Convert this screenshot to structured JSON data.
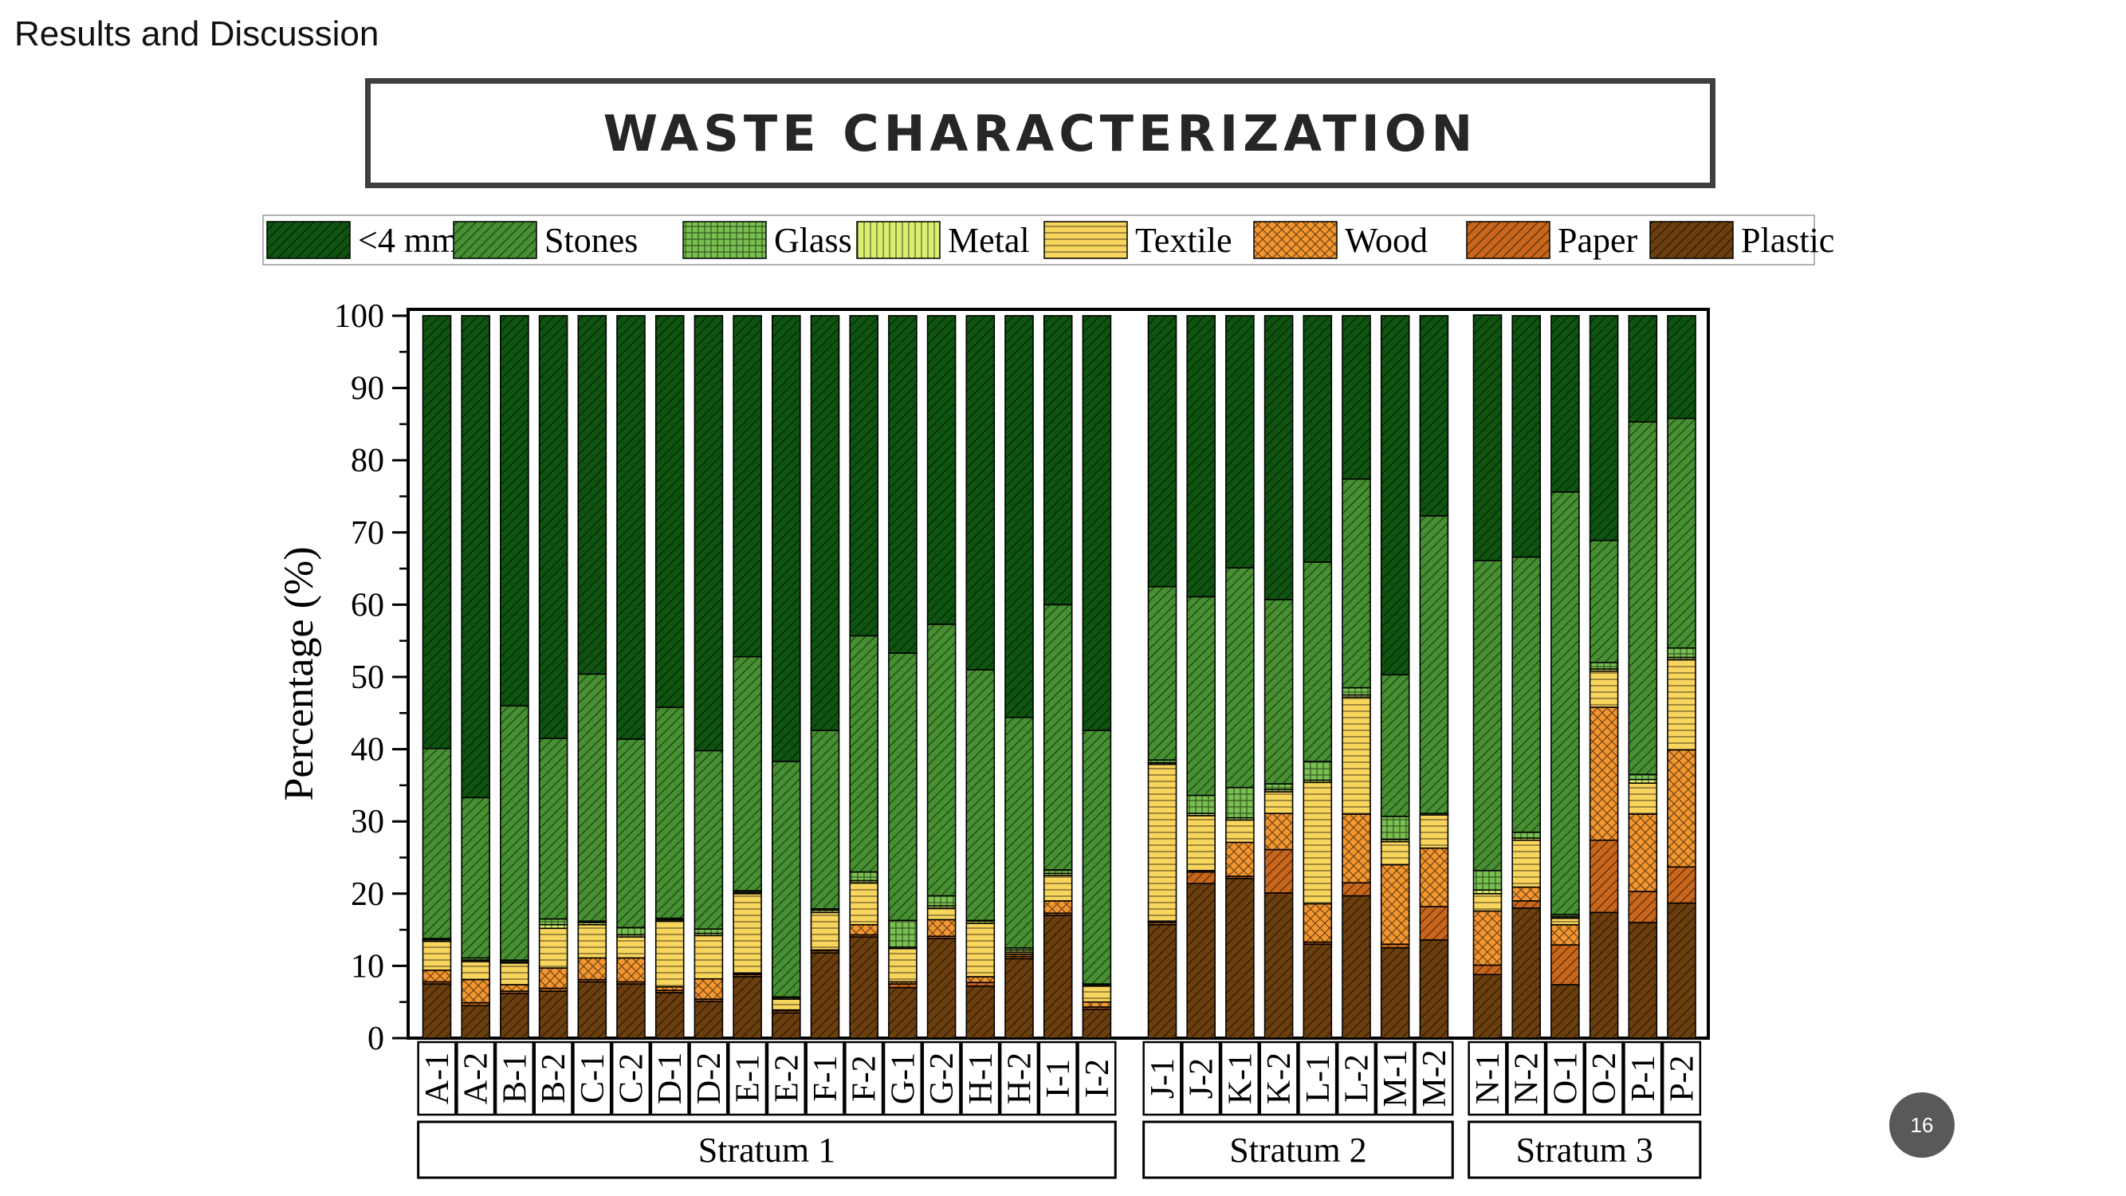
{
  "section_label": "Results and Discussion",
  "title": "WASTE CHARACTERIZATION",
  "page_number": "16",
  "chart_data": {
    "type": "bar",
    "stacked": true,
    "ylabel": "Percentage (%)",
    "xlabel": "",
    "ylim": [
      0,
      100
    ],
    "yticks": [
      0,
      10,
      20,
      30,
      40,
      50,
      60,
      70,
      80,
      90,
      100
    ],
    "legend_position": "top",
    "groups": [
      {
        "name": "Stratum 1",
        "categories": [
          "A-1",
          "A-2",
          "B-1",
          "B-2",
          "C-1",
          "C-2",
          "D-1",
          "D-2",
          "E-1",
          "E-2",
          "F-1",
          "F-2",
          "G-1",
          "G-2",
          "H-1",
          "H-2",
          "I-1",
          "I-2"
        ]
      },
      {
        "name": "Stratum 2",
        "categories": [
          "J-1",
          "J-2",
          "K-1",
          "K-2",
          "L-1",
          "L-2",
          "M-1",
          "M-2"
        ]
      },
      {
        "name": "Stratum 3",
        "categories": [
          "N-1",
          "N-2",
          "O-1",
          "O-2",
          "P-1",
          "P-2"
        ]
      }
    ],
    "categories": [
      "A-1",
      "A-2",
      "B-1",
      "B-2",
      "C-1",
      "C-2",
      "D-1",
      "D-2",
      "E-1",
      "E-2",
      "F-1",
      "F-2",
      "G-1",
      "G-2",
      "H-1",
      "H-2",
      "I-1",
      "I-2",
      "J-1",
      "J-2",
      "K-1",
      "K-2",
      "L-1",
      "L-2",
      "M-1",
      "M-2",
      "N-1",
      "N-2",
      "O-1",
      "O-2",
      "P-1",
      "P-2"
    ],
    "series": [
      {
        "name": "Plastic",
        "color": "#6b3e0e",
        "values": [
          7.5,
          4.5,
          6.2,
          6.5,
          7.8,
          7.5,
          6.3,
          5.1,
          8.5,
          3.5,
          11.8,
          14.0,
          7.0,
          13.8,
          7.2,
          11.0,
          17.0,
          4.0,
          15.7,
          21.4,
          22.1,
          20.1,
          13.0,
          19.7,
          12.5,
          13.6,
          8.8,
          18.0,
          7.4,
          17.4,
          16.0,
          18.7
        ]
      },
      {
        "name": "Paper",
        "color": "#c8661b",
        "values": [
          0.3,
          0.4,
          0.3,
          0.4,
          0.3,
          0.3,
          0.3,
          0.3,
          0.3,
          0.3,
          0.3,
          0.3,
          0.5,
          0.3,
          0.5,
          0.3,
          0.3,
          0.3,
          0.3,
          1.6,
          0.3,
          6.0,
          0.3,
          1.8,
          0.5,
          4.6,
          1.3,
          1.0,
          5.5,
          10.0,
          4.3,
          5.0
        ]
      },
      {
        "name": "Wood",
        "color": "#f3962f",
        "values": [
          1.6,
          3.2,
          0.9,
          2.8,
          3.0,
          3.3,
          0.5,
          2.8,
          0.2,
          0.1,
          0.1,
          1.4,
          0.3,
          2.3,
          0.8,
          0.3,
          1.7,
          0.7,
          0.2,
          0.2,
          4.7,
          5.0,
          5.3,
          9.5,
          11.0,
          8.1,
          7.5,
          1.9,
          2.8,
          18.4,
          10.7,
          16.2
        ]
      },
      {
        "name": "Textile",
        "color": "#f8d55d",
        "values": [
          4.0,
          2.5,
          3.0,
          5.5,
          4.6,
          2.9,
          9.1,
          6.0,
          11.0,
          1.5,
          5.2,
          5.8,
          4.6,
          1.6,
          7.4,
          0.3,
          3.5,
          2.2,
          21.7,
          7.6,
          3.1,
          3.0,
          16.8,
          16.2,
          3.2,
          4.6,
          2.4,
          6.5,
          0.9,
          5.0,
          4.3,
          12.5
        ]
      },
      {
        "name": "Metal",
        "color": "#d9ef6e",
        "values": [
          0.2,
          0.2,
          0.2,
          0.5,
          0.3,
          0.3,
          0.2,
          0.3,
          0.2,
          0.2,
          0.3,
          0.3,
          0.2,
          0.3,
          0.3,
          0.3,
          0.3,
          0.2,
          0.2,
          0.3,
          0.3,
          0.3,
          0.3,
          0.3,
          0.3,
          0.2,
          0.5,
          0.3,
          0.2,
          0.3,
          0.5,
          0.3
        ]
      },
      {
        "name": "Glass",
        "color": "#78c04f",
        "values": [
          0.2,
          0.3,
          0.2,
          0.8,
          0.2,
          1.0,
          0.2,
          0.6,
          0.2,
          0.1,
          0.2,
          1.2,
          3.7,
          1.4,
          0.1,
          0.3,
          0.5,
          0.1,
          0.4,
          2.5,
          4.2,
          0.8,
          2.6,
          1.0,
          3.2,
          0.0,
          2.7,
          0.8,
          0.3,
          0.9,
          0.7,
          1.3
        ]
      },
      {
        "name": "Stones",
        "color": "#469031",
        "values": [
          26.3,
          22.2,
          35.2,
          25.0,
          34.2,
          26.1,
          29.2,
          24.7,
          32.4,
          32.6,
          24.7,
          32.7,
          37.0,
          37.6,
          34.7,
          31.9,
          36.7,
          35.1,
          24.0,
          27.5,
          30.4,
          25.5,
          27.6,
          28.9,
          19.6,
          41.2,
          42.9,
          38.1,
          58.5,
          16.9,
          48.8,
          31.8
        ]
      },
      {
        "name": "<4 mm",
        "color": "#0e5410",
        "values": [
          59.9,
          66.7,
          54.0,
          58.5,
          49.6,
          58.6,
          54.2,
          60.2,
          47.2,
          61.7,
          57.4,
          44.3,
          46.7,
          42.7,
          49.0,
          55.6,
          40.0,
          57.4,
          37.5,
          38.9,
          34.9,
          39.3,
          34.1,
          22.6,
          49.7,
          27.7,
          34.0,
          33.4,
          24.4,
          31.1,
          14.7,
          14.2
        ]
      }
    ]
  }
}
